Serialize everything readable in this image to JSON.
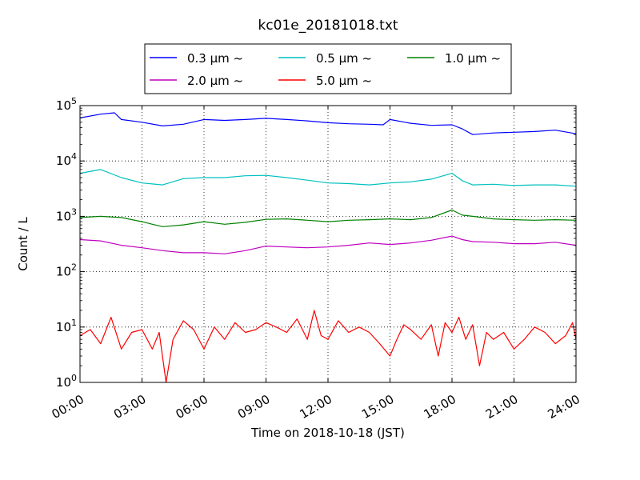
{
  "chart_data": {
    "type": "line",
    "title": "kc01e_20181018.txt",
    "xlabel": "Time on 2018-10-18 (JST)",
    "ylabel": "Count / L",
    "y_scale": "log",
    "ylim": [
      1,
      100000
    ],
    "xlim": [
      "2018-10-18 00:00",
      "2018-10-19 00:00"
    ],
    "grid": true,
    "legend_position": "top-center",
    "x_tick_labels": [
      "00:00",
      "03:00",
      "06:00",
      "09:00",
      "12:00",
      "15:00",
      "18:00",
      "21:00",
      "24:00"
    ],
    "y_tick_labels": [
      {
        "base": "10",
        "exp": "0"
      },
      {
        "base": "10",
        "exp": "1"
      },
      {
        "base": "10",
        "exp": "2"
      },
      {
        "base": "10",
        "exp": "3"
      },
      {
        "base": "10",
        "exp": "4"
      },
      {
        "base": "10",
        "exp": "5"
      }
    ],
    "legend_suffix": "~",
    "series": [
      {
        "name": "0.3 µm",
        "color": "#0000ff",
        "points": [
          [
            "00:00",
            60000
          ],
          [
            "01:00",
            70000
          ],
          [
            "01:40",
            74000
          ],
          [
            "02:00",
            56000
          ],
          [
            "03:00",
            50000
          ],
          [
            "04:00",
            43000
          ],
          [
            "05:00",
            46000
          ],
          [
            "06:00",
            56000
          ],
          [
            "07:00",
            54000
          ],
          [
            "08:00",
            56000
          ],
          [
            "09:00",
            59000
          ],
          [
            "10:00",
            56000
          ],
          [
            "11:00",
            53000
          ],
          [
            "12:00",
            49000
          ],
          [
            "13:00",
            47000
          ],
          [
            "14:00",
            46000
          ],
          [
            "14:40",
            45000
          ],
          [
            "15:00",
            56000
          ],
          [
            "16:00",
            48000
          ],
          [
            "17:00",
            44000
          ],
          [
            "18:00",
            45000
          ],
          [
            "18:30",
            38000
          ],
          [
            "19:00",
            30000
          ],
          [
            "20:00",
            32000
          ],
          [
            "21:00",
            33000
          ],
          [
            "22:00",
            34000
          ],
          [
            "23:00",
            36000
          ],
          [
            "24:00",
            31000
          ]
        ]
      },
      {
        "name": "0.5 µm",
        "color": "#00bfbf",
        "points": [
          [
            "00:00",
            6000
          ],
          [
            "01:00",
            7000
          ],
          [
            "02:00",
            5000
          ],
          [
            "03:00",
            4000
          ],
          [
            "04:00",
            3700
          ],
          [
            "05:00",
            4800
          ],
          [
            "06:00",
            5000
          ],
          [
            "07:00",
            5000
          ],
          [
            "08:00",
            5400
          ],
          [
            "09:00",
            5500
          ],
          [
            "10:00",
            5000
          ],
          [
            "11:00",
            4500
          ],
          [
            "12:00",
            4000
          ],
          [
            "13:00",
            3900
          ],
          [
            "14:00",
            3700
          ],
          [
            "15:00",
            4000
          ],
          [
            "16:00",
            4200
          ],
          [
            "17:00",
            4700
          ],
          [
            "18:00",
            6000
          ],
          [
            "18:30",
            4400
          ],
          [
            "19:00",
            3700
          ],
          [
            "20:00",
            3800
          ],
          [
            "21:00",
            3600
          ],
          [
            "22:00",
            3700
          ],
          [
            "23:00",
            3700
          ],
          [
            "24:00",
            3500
          ]
        ]
      },
      {
        "name": "1.0 µm",
        "color": "#007f00",
        "points": [
          [
            "00:00",
            950
          ],
          [
            "01:00",
            1000
          ],
          [
            "02:00",
            950
          ],
          [
            "03:00",
            800
          ],
          [
            "03:30",
            720
          ],
          [
            "04:00",
            650
          ],
          [
            "05:00",
            700
          ],
          [
            "06:00",
            800
          ],
          [
            "07:00",
            720
          ],
          [
            "08:00",
            780
          ],
          [
            "09:00",
            880
          ],
          [
            "10:00",
            900
          ],
          [
            "11:00",
            850
          ],
          [
            "12:00",
            800
          ],
          [
            "13:00",
            850
          ],
          [
            "14:00",
            870
          ],
          [
            "15:00",
            900
          ],
          [
            "16:00",
            870
          ],
          [
            "17:00",
            950
          ],
          [
            "18:00",
            1300
          ],
          [
            "18:30",
            1050
          ],
          [
            "19:00",
            1000
          ],
          [
            "20:00",
            900
          ],
          [
            "21:00",
            870
          ],
          [
            "22:00",
            850
          ],
          [
            "23:00",
            870
          ],
          [
            "24:00",
            850
          ]
        ]
      },
      {
        "name": "2.0 µm",
        "color": "#bf00bf",
        "points": [
          [
            "00:00",
            380
          ],
          [
            "01:00",
            360
          ],
          [
            "02:00",
            300
          ],
          [
            "03:00",
            270
          ],
          [
            "04:00",
            240
          ],
          [
            "05:00",
            220
          ],
          [
            "06:00",
            220
          ],
          [
            "07:00",
            210
          ],
          [
            "08:00",
            240
          ],
          [
            "09:00",
            290
          ],
          [
            "10:00",
            280
          ],
          [
            "11:00",
            270
          ],
          [
            "12:00",
            280
          ],
          [
            "13:00",
            300
          ],
          [
            "14:00",
            330
          ],
          [
            "15:00",
            310
          ],
          [
            "16:00",
            330
          ],
          [
            "17:00",
            370
          ],
          [
            "18:00",
            440
          ],
          [
            "18:30",
            380
          ],
          [
            "19:00",
            350
          ],
          [
            "20:00",
            340
          ],
          [
            "21:00",
            320
          ],
          [
            "22:00",
            320
          ],
          [
            "23:00",
            340
          ],
          [
            "24:00",
            300
          ]
        ]
      },
      {
        "name": "5.0 µm",
        "color": "#ff0000",
        "points": [
          [
            "00:00",
            7
          ],
          [
            "00:30",
            9
          ],
          [
            "01:00",
            5
          ],
          [
            "01:30",
            15
          ],
          [
            "02:00",
            4
          ],
          [
            "02:30",
            8
          ],
          [
            "03:00",
            9
          ],
          [
            "03:30",
            4
          ],
          [
            "03:50",
            8
          ],
          [
            "04:10",
            1
          ],
          [
            "04:30",
            6
          ],
          [
            "05:00",
            13
          ],
          [
            "05:30",
            9
          ],
          [
            "06:00",
            4
          ],
          [
            "06:30",
            10
          ],
          [
            "07:00",
            6
          ],
          [
            "07:30",
            12
          ],
          [
            "08:00",
            8
          ],
          [
            "08:30",
            9
          ],
          [
            "09:00",
            12
          ],
          [
            "09:30",
            10
          ],
          [
            "10:00",
            8
          ],
          [
            "10:30",
            14
          ],
          [
            "11:00",
            6
          ],
          [
            "11:20",
            20
          ],
          [
            "11:40",
            7
          ],
          [
            "12:00",
            6
          ],
          [
            "12:30",
            13
          ],
          [
            "13:00",
            8
          ],
          [
            "13:30",
            10
          ],
          [
            "14:00",
            8
          ],
          [
            "14:30",
            5
          ],
          [
            "15:00",
            3
          ],
          [
            "15:20",
            6
          ],
          [
            "15:40",
            11
          ],
          [
            "16:00",
            9
          ],
          [
            "16:30",
            6
          ],
          [
            "17:00",
            11
          ],
          [
            "17:20",
            3
          ],
          [
            "17:40",
            12
          ],
          [
            "18:00",
            8
          ],
          [
            "18:20",
            15
          ],
          [
            "18:40",
            6
          ],
          [
            "19:00",
            11
          ],
          [
            "19:20",
            2
          ],
          [
            "19:40",
            8
          ],
          [
            "20:00",
            6
          ],
          [
            "20:30",
            8
          ],
          [
            "21:00",
            4
          ],
          [
            "21:30",
            6
          ],
          [
            "22:00",
            10
          ],
          [
            "22:30",
            8
          ],
          [
            "23:00",
            5
          ],
          [
            "23:30",
            7
          ],
          [
            "23:50",
            12
          ],
          [
            "24:00",
            6
          ]
        ]
      }
    ]
  }
}
